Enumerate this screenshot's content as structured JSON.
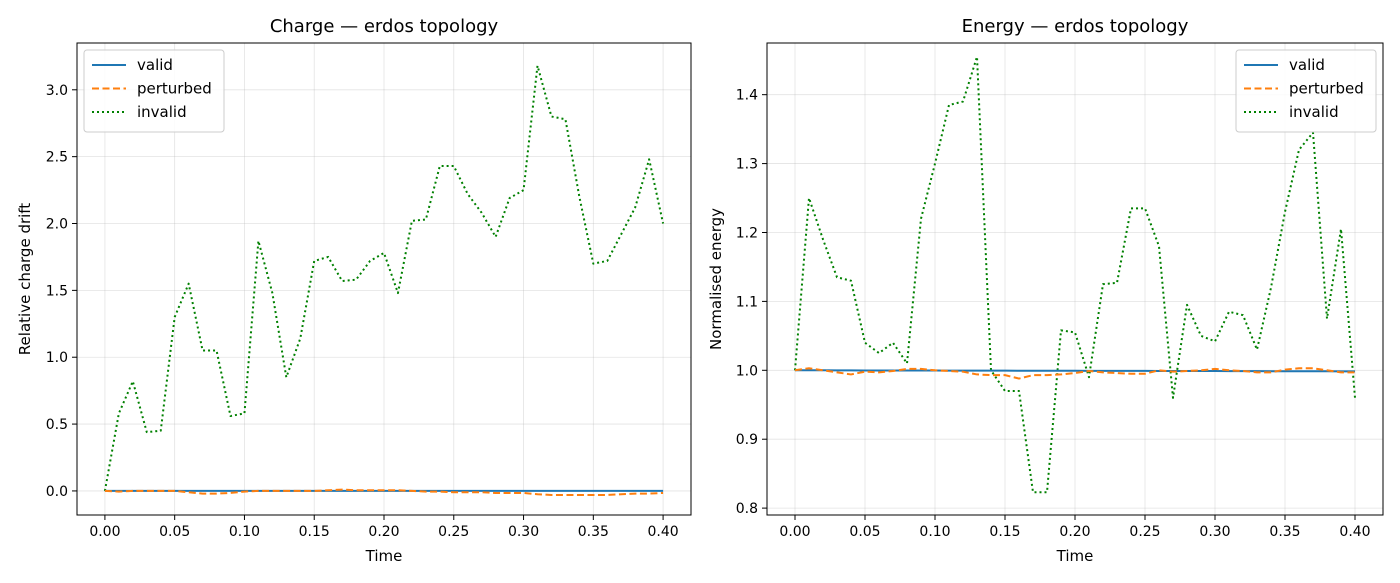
{
  "chart_data": [
    {
      "type": "line",
      "title": "Charge — erdos topology",
      "xlabel": "Time",
      "ylabel": "Relative charge drift",
      "xlim": [
        -0.02,
        0.42
      ],
      "ylim": [
        -0.18,
        3.35
      ],
      "xticks": [
        0.0,
        0.05,
        0.1,
        0.15,
        0.2,
        0.25,
        0.3,
        0.35,
        0.4
      ],
      "xtick_labels": [
        "0.00",
        "0.05",
        "0.10",
        "0.15",
        "0.20",
        "0.25",
        "0.30",
        "0.35",
        "0.40"
      ],
      "yticks": [
        0.0,
        0.5,
        1.0,
        1.5,
        2.0,
        2.5,
        3.0
      ],
      "ytick_labels": [
        "0.0",
        "0.5",
        "1.0",
        "1.5",
        "2.0",
        "2.5",
        "3.0"
      ],
      "grid": true,
      "legend_position": "top-left",
      "x": [
        0.0,
        0.01,
        0.02,
        0.03,
        0.04,
        0.05,
        0.06,
        0.07,
        0.08,
        0.09,
        0.1,
        0.11,
        0.12,
        0.13,
        0.14,
        0.15,
        0.16,
        0.17,
        0.18,
        0.19,
        0.2,
        0.21,
        0.22,
        0.23,
        0.24,
        0.25,
        0.26,
        0.27,
        0.28,
        0.29,
        0.3,
        0.31,
        0.32,
        0.33,
        0.34,
        0.35,
        0.36,
        0.37,
        0.38,
        0.39,
        0.4
      ],
      "series": [
        {
          "name": "valid",
          "color": "#1f77b4",
          "style": "solid",
          "values": [
            0.0,
            0.0,
            0.0,
            0.0,
            0.0,
            0.0,
            0.0,
            0.0,
            0.0,
            0.0,
            0.0,
            0.0,
            0.0,
            0.0,
            0.0,
            0.0,
            0.0,
            0.0,
            0.0,
            0.0,
            0.0,
            0.0,
            0.0,
            0.0,
            0.0,
            0.0,
            0.0,
            0.0,
            0.0,
            0.0,
            0.0,
            0.0,
            0.0,
            0.0,
            0.0,
            0.0,
            0.0,
            0.0,
            0.0,
            0.0,
            0.0
          ]
        },
        {
          "name": "perturbed",
          "color": "#ff7f0e",
          "style": "dashed",
          "values": [
            0.0,
            -0.005,
            0.0,
            0.0,
            0.0,
            0.0,
            -0.01,
            -0.02,
            -0.02,
            -0.015,
            -0.005,
            0.0,
            0.0,
            0.0,
            0.0,
            0.0,
            0.005,
            0.01,
            0.005,
            0.005,
            0.005,
            0.005,
            0.0,
            -0.005,
            -0.005,
            -0.01,
            -0.01,
            -0.01,
            -0.015,
            -0.015,
            -0.015,
            -0.025,
            -0.03,
            -0.03,
            -0.03,
            -0.03,
            -0.03,
            -0.025,
            -0.02,
            -0.02,
            -0.015
          ]
        },
        {
          "name": "invalid",
          "color": "#008000",
          "style": "dotted",
          "values": [
            0.0,
            0.58,
            0.82,
            0.44,
            0.45,
            1.3,
            1.55,
            1.05,
            1.05,
            0.56,
            0.58,
            1.87,
            1.48,
            0.85,
            1.14,
            1.72,
            1.75,
            1.57,
            1.58,
            1.72,
            1.78,
            1.48,
            2.02,
            2.03,
            2.43,
            2.43,
            2.22,
            2.08,
            1.9,
            2.19,
            2.25,
            3.18,
            2.8,
            2.78,
            2.2,
            1.7,
            1.72,
            1.92,
            2.12,
            2.48,
            2.0
          ]
        }
      ]
    },
    {
      "type": "line",
      "title": "Energy — erdos topology",
      "xlabel": "Time",
      "ylabel": "Normalised energy",
      "xlim": [
        -0.02,
        0.42
      ],
      "ylim": [
        0.79,
        1.475
      ],
      "xticks": [
        0.0,
        0.05,
        0.1,
        0.15,
        0.2,
        0.25,
        0.3,
        0.35,
        0.4
      ],
      "xtick_labels": [
        "0.00",
        "0.05",
        "0.10",
        "0.15",
        "0.20",
        "0.25",
        "0.30",
        "0.35",
        "0.40"
      ],
      "yticks": [
        0.8,
        0.9,
        1.0,
        1.1,
        1.2,
        1.3,
        1.4
      ],
      "ytick_labels": [
        "0.8",
        "0.9",
        "1.0",
        "1.1",
        "1.2",
        "1.3",
        "1.4"
      ],
      "grid": true,
      "legend_position": "top-right",
      "x": [
        0.0,
        0.01,
        0.02,
        0.03,
        0.04,
        0.05,
        0.06,
        0.07,
        0.08,
        0.09,
        0.1,
        0.11,
        0.12,
        0.13,
        0.14,
        0.15,
        0.16,
        0.17,
        0.18,
        0.19,
        0.2,
        0.21,
        0.22,
        0.23,
        0.24,
        0.25,
        0.26,
        0.27,
        0.28,
        0.29,
        0.3,
        0.31,
        0.32,
        0.33,
        0.34,
        0.35,
        0.36,
        0.37,
        0.38,
        0.39,
        0.4
      ],
      "series": [
        {
          "name": "valid",
          "color": "#1f77b4",
          "style": "solid",
          "values": [
            1.0,
            1.0,
            1.0,
            0.9999,
            0.9999,
            0.9998,
            0.9998,
            0.9998,
            0.9997,
            0.9997,
            0.9997,
            0.9996,
            0.9996,
            0.9995,
            0.9995,
            0.9995,
            0.9994,
            0.9994,
            0.9993,
            0.9993,
            0.9993,
            0.9992,
            0.9992,
            0.9991,
            0.9991,
            0.9991,
            0.999,
            0.999,
            0.999,
            0.9989,
            0.9989,
            0.9988,
            0.9988,
            0.9988,
            0.9987,
            0.9987,
            0.9986,
            0.9986,
            0.9986,
            0.9985,
            0.9985
          ]
        },
        {
          "name": "perturbed",
          "color": "#ff7f0e",
          "style": "dashed",
          "values": [
            1.0,
            1.003,
            1.0,
            0.997,
            0.994,
            0.998,
            0.997,
            0.999,
            1.002,
            1.002,
            1.0,
            0.999,
            0.998,
            0.994,
            0.993,
            0.993,
            0.988,
            0.993,
            0.993,
            0.994,
            0.996,
            0.999,
            0.997,
            0.996,
            0.995,
            0.995,
            1.0,
            0.998,
            0.999,
            1.0,
            1.002,
            1.0,
            0.999,
            0.997,
            0.997,
            1.001,
            1.003,
            1.003,
            1.0,
            0.997,
            0.997
          ]
        },
        {
          "name": "invalid",
          "color": "#008000",
          "style": "dotted",
          "values": [
            1.0,
            1.25,
            1.19,
            1.135,
            1.13,
            1.04,
            1.025,
            1.04,
            1.01,
            1.22,
            1.3,
            1.385,
            1.39,
            1.455,
            1.0,
            0.97,
            0.97,
            0.823,
            0.823,
            1.058,
            1.055,
            0.99,
            1.125,
            1.127,
            1.235,
            1.235,
            1.18,
            0.96,
            1.095,
            1.05,
            1.042,
            1.085,
            1.08,
            1.03,
            1.12,
            1.23,
            1.32,
            1.345,
            1.075,
            1.205,
            0.96
          ]
        }
      ]
    }
  ]
}
